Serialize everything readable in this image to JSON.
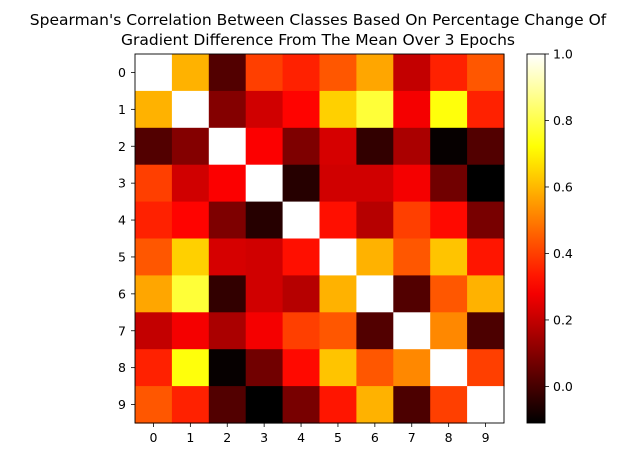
{
  "chart_data": {
    "type": "heatmap",
    "title": "Spearman's Correlation Between Classes Based On Percentage Change Of Gradient Difference From The Mean Over 3 Epochs",
    "title_lines": [
      "Spearman's Correlation Between Classes Based On Percentage Change Of",
      "Gradient Difference From The Mean Over 3 Epochs"
    ],
    "colormap": "hot",
    "x_categories": [
      "0",
      "1",
      "2",
      "3",
      "4",
      "5",
      "6",
      "7",
      "8",
      "9"
    ],
    "y_categories": [
      "0",
      "1",
      "2",
      "3",
      "4",
      "5",
      "6",
      "7",
      "8",
      "9"
    ],
    "values": [
      [
        1.0,
        0.59,
        0.02,
        0.4,
        0.35,
        0.44,
        0.57,
        0.2,
        0.35,
        0.44
      ],
      [
        0.59,
        1.0,
        0.1,
        0.22,
        0.3,
        0.64,
        0.78,
        0.28,
        0.73,
        0.35
      ],
      [
        0.02,
        0.1,
        1.0,
        0.29,
        0.09,
        0.23,
        -0.03,
        0.16,
        -0.1,
        0.02
      ],
      [
        0.4,
        0.22,
        0.29,
        1.0,
        -0.05,
        0.22,
        0.22,
        0.28,
        0.07,
        -0.11
      ],
      [
        0.35,
        0.3,
        0.09,
        -0.05,
        1.0,
        0.32,
        0.18,
        0.4,
        0.31,
        0.08
      ],
      [
        0.44,
        0.64,
        0.23,
        0.22,
        0.32,
        1.0,
        0.59,
        0.44,
        0.62,
        0.33
      ],
      [
        0.57,
        0.78,
        -0.03,
        0.22,
        0.18,
        0.59,
        1.0,
        0.02,
        0.44,
        0.59
      ],
      [
        0.2,
        0.28,
        0.16,
        0.28,
        0.4,
        0.44,
        0.02,
        1.0,
        0.52,
        0.01
      ],
      [
        0.35,
        0.73,
        -0.1,
        0.07,
        0.31,
        0.62,
        0.44,
        0.52,
        1.0,
        0.4
      ],
      [
        0.44,
        0.35,
        0.02,
        -0.11,
        0.08,
        0.33,
        0.59,
        0.01,
        0.4,
        1.0
      ]
    ],
    "colorbar": {
      "min": -0.11,
      "max": 1.0,
      "ticks": [
        -0.0,
        0.2,
        0.4,
        0.6,
        0.8,
        1.0
      ],
      "tick_labels": [
        "0.0",
        "0.2",
        "0.4",
        "0.6",
        "0.8",
        "1.0"
      ]
    }
  }
}
